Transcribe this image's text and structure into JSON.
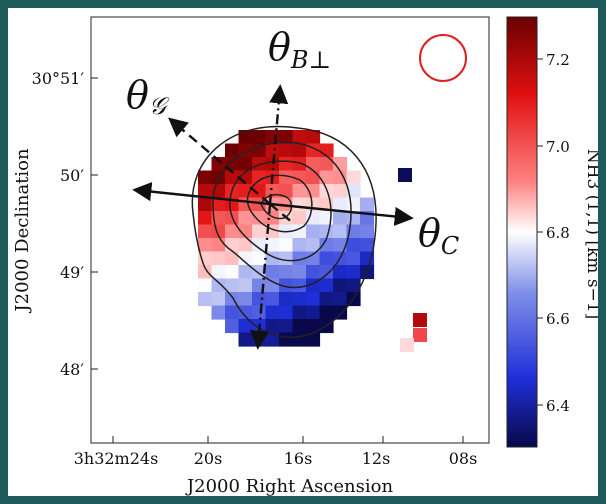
{
  "chart_data": {
    "type": "heatmap",
    "xlabel": "J2000 Right Ascension",
    "ylabel": "J2000 Declination",
    "x_ticks": [
      "3h32m24s",
      "20s",
      "16s",
      "12s",
      "08s"
    ],
    "y_ticks": [
      "30°51′",
      "50′",
      "49′",
      "48′"
    ],
    "colorbar": {
      "label": "NH3 (1,1) [km s−1]",
      "range": [
        6.3,
        7.3
      ],
      "ticks": [
        "7.2",
        "7.0",
        "6.8",
        "6.6",
        "6.4"
      ],
      "colors": [
        "#08084a",
        "#1f2fd8",
        "#7d8ae8",
        "#ffffff",
        "#ff7f7f",
        "#e01010",
        "#6b0000"
      ]
    },
    "annotations": [
      {
        "label": "θG",
        "style": "dashed"
      },
      {
        "label": "θB⊥",
        "style": "dash-dot"
      },
      {
        "label": "θC",
        "style": "solid"
      }
    ],
    "beam": "circle",
    "grid": false,
    "contours": 5
  }
}
